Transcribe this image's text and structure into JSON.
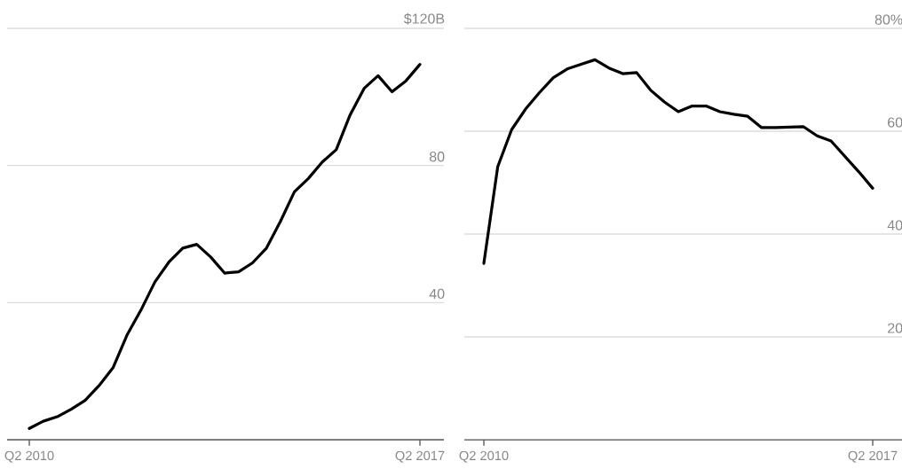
{
  "chart_data": [
    {
      "type": "line",
      "categories": [
        "Q2 2010",
        null,
        null,
        null,
        null,
        null,
        null,
        null,
        null,
        null,
        null,
        null,
        null,
        null,
        null,
        null,
        null,
        null,
        null,
        null,
        null,
        null,
        null,
        null,
        null,
        null,
        null,
        null,
        "Q2 2017"
      ],
      "values": [
        3.3,
        5.4,
        6.7,
        8.9,
        11.5,
        15.8,
        21,
        30.5,
        37.8,
        46,
        51.8,
        55.9,
        57,
        53.3,
        48.6,
        49,
        51.6,
        55.9,
        63.7,
        72.3,
        76.2,
        81,
        84.6,
        94.8,
        102.5,
        106.2,
        101.5,
        104.7,
        109.5
      ],
      "color": "#000000",
      "ylim": [
        0,
        120
      ],
      "yticks": [
        40,
        80,
        {
          "value": 120,
          "label": "$120B"
        }
      ],
      "grid": "y"
    },
    {
      "type": "line",
      "categories": [
        "Q2 2010",
        null,
        null,
        null,
        null,
        null,
        null,
        null,
        null,
        null,
        null,
        null,
        null,
        null,
        null,
        null,
        null,
        null,
        null,
        null,
        null,
        null,
        null,
        null,
        null,
        null,
        null,
        null,
        "Q2 2017"
      ],
      "values": [
        34.3,
        53.1,
        60.3,
        64.3,
        67.5,
        70.4,
        72.1,
        73,
        73.9,
        72.3,
        71.2,
        71.4,
        68,
        65.7,
        63.8,
        64.9,
        64.9,
        63.8,
        63.3,
        62.9,
        60.7,
        60.7,
        60.8,
        60.9,
        59.1,
        58.1,
        55.1,
        52.1,
        48.9
      ],
      "color": "#000000",
      "ylim": [
        0,
        80
      ],
      "yticks": [
        20,
        40,
        60,
        {
          "value": 80,
          "label": "80%"
        }
      ],
      "grid": "y"
    }
  ]
}
